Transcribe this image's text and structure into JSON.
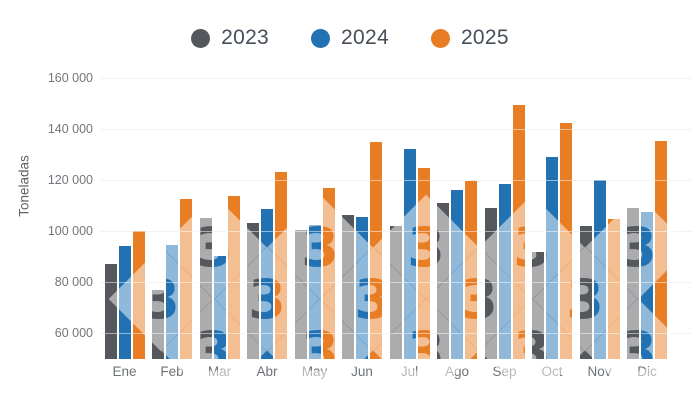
{
  "watermark": {
    "glyph": "3"
  },
  "chart_data": {
    "type": "bar",
    "title": "",
    "ylabel": "Toneladas",
    "xlabel": "",
    "categories": [
      "Ene",
      "Feb",
      "Mar",
      "Abr",
      "May",
      "Jun",
      "Jul",
      "Ago",
      "Sep",
      "Oct",
      "Nov",
      "Dic"
    ],
    "series": [
      {
        "name": "2023",
        "color": "#54585c",
        "values": [
          87300,
          77100,
          105200,
          103100,
          100300,
          106400,
          102000,
          111000,
          109100,
          91700,
          102200,
          109200
        ]
      },
      {
        "name": "2024",
        "color": "#2171b3",
        "values": [
          94300,
          94500,
          90400,
          108800,
          102400,
          105400,
          132000,
          116300,
          118600,
          128900,
          120000,
          107400
        ]
      },
      {
        "name": "2025",
        "color": "#e87d24",
        "values": [
          100200,
          112500,
          113600,
          123200,
          117000,
          135000,
          124800,
          119600,
          149500,
          142200,
          104600,
          135400
        ]
      }
    ],
    "ylim": [
      50000,
      165000
    ],
    "yticks": [
      60000,
      80000,
      100000,
      120000,
      140000,
      160000
    ],
    "ytick_format": "space-thousands",
    "grid": true,
    "legend_position": "top",
    "colors_meta": {
      "gridline": "#e5e6e8",
      "tick_text": "#71767a",
      "legend_text": "#454e57"
    }
  }
}
